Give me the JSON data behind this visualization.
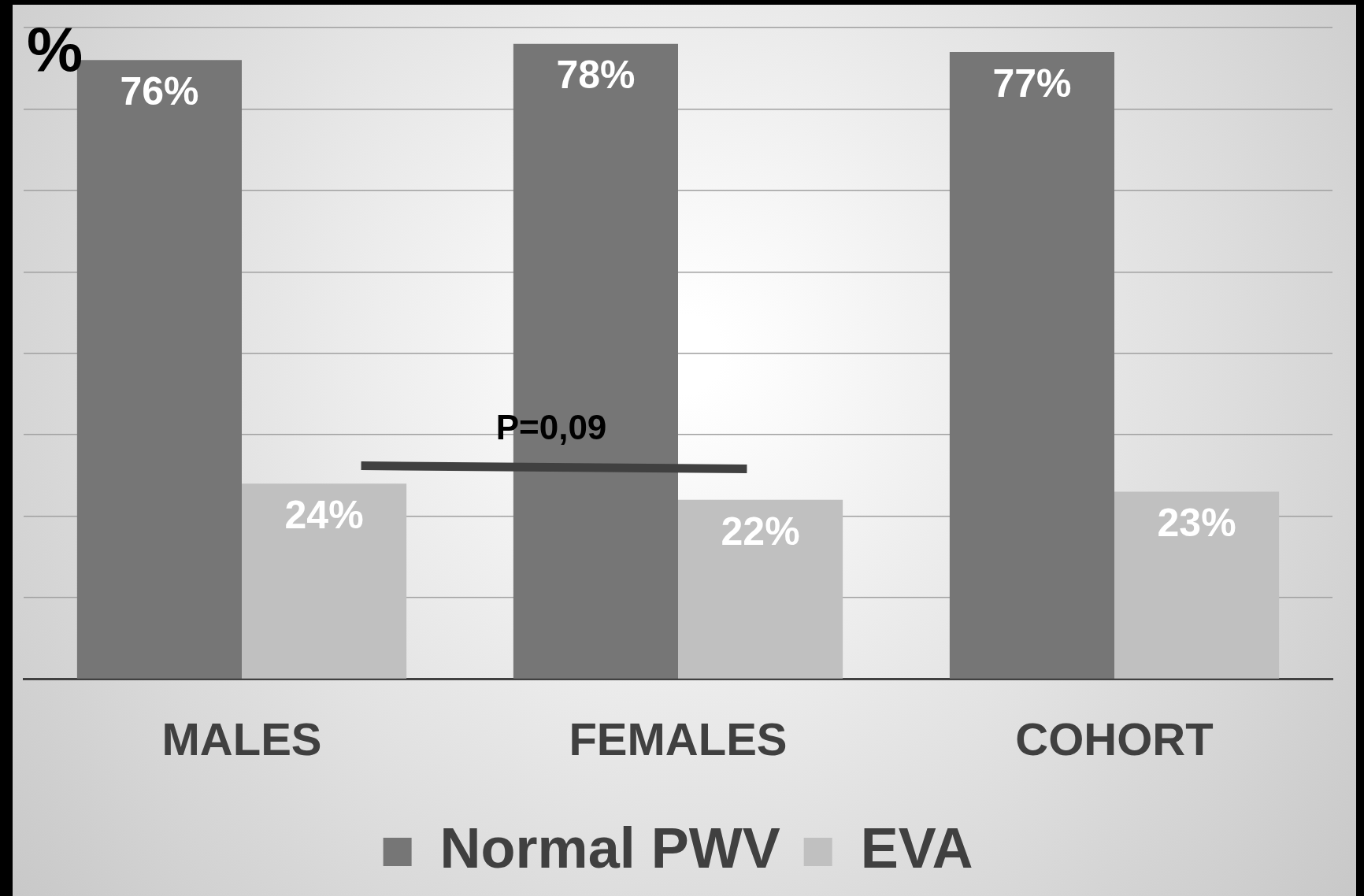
{
  "chart_data": {
    "type": "bar",
    "ylabel": "%",
    "categories": [
      "MALES",
      "FEMALES",
      "COHORT"
    ],
    "series": [
      {
        "name": "Normal PWV",
        "color": "#767676",
        "values": [
          76,
          78,
          77
        ],
        "value_labels": [
          "76%",
          "78%",
          "77%"
        ]
      },
      {
        "name": "EVA",
        "color": "#c0c0c0",
        "values": [
          24,
          22,
          23
        ],
        "value_labels": [
          "24%",
          "22%",
          "23%"
        ]
      }
    ],
    "tick_labels": "x",
    "grid": "y",
    "legend": "bottom",
    "annotations": [
      "P=0,09"
    ]
  }
}
